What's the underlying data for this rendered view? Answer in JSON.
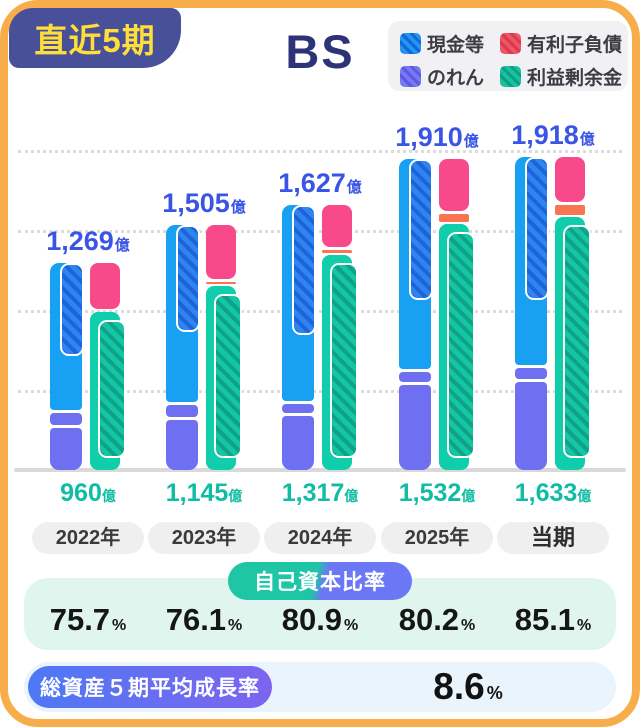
{
  "header": {
    "badge": "直近5期",
    "title": "BS"
  },
  "legend": {
    "items": [
      {
        "label": "現金等",
        "color": "#2196F3"
      },
      {
        "label": "有利子負債",
        "color": "#F05567"
      },
      {
        "label": "のれん",
        "color": "#7878F5"
      },
      {
        "label": "利益剰余金",
        "color": "#16C3A0"
      }
    ]
  },
  "units": {
    "oku": "億",
    "percent": "%"
  },
  "chart_data": {
    "type": "bar",
    "title": "BS",
    "period_label": "直近5期",
    "unit": "億円",
    "categories": [
      "2022年",
      "2023年",
      "2024年",
      "2025年",
      "当期"
    ],
    "ylim": [
      0,
      2000
    ],
    "gridlines": "dotted, unlabeled, every ~500億",
    "legend_entries": [
      "現金等",
      "有利子負債",
      "のれん",
      "利益剰余金"
    ],
    "groups": [
      {
        "year": "2022年",
        "total": 1269,
        "total_label": "1,269",
        "retained": 960,
        "retained_label": "960",
        "equity_ratio": "75.7",
        "cash_est": 570,
        "goodwill_est": 260,
        "goodwill_strip_est": 75,
        "debt_est": 282,
        "other_liabilities_est": 0
      },
      {
        "year": "2023年",
        "total": 1505,
        "total_label": "1,505",
        "retained": 1145,
        "retained_label": "1,145",
        "equity_ratio": "76.1",
        "cash_est": 655,
        "goodwill_est": 305,
        "goodwill_strip_est": 75,
        "debt_est": 331,
        "other_liabilities_est": 12
      },
      {
        "year": "2024年",
        "total": 1627,
        "total_label": "1,627",
        "retained": 1317,
        "retained_label": "1,317",
        "equity_ratio": "80.9",
        "cash_est": 800,
        "goodwill_est": 330,
        "goodwill_strip_est": 55,
        "debt_est": 258,
        "other_liabilities_est": 18
      },
      {
        "year": "2025年",
        "total": 1910,
        "total_label": "1,910",
        "retained": 1532,
        "retained_label": "1,532",
        "equity_ratio": "80.2",
        "cash_est": 865,
        "goodwill_est": 520,
        "goodwill_strip_est": 60,
        "debt_est": 319,
        "other_liabilities_est": 49
      },
      {
        "year": "当期",
        "total": 1918,
        "total_label": "1,918",
        "retained": 1633,
        "retained_label": "1,633",
        "equity_ratio": "85.1",
        "cash_est": 875,
        "goodwill_est": 540,
        "goodwill_strip_est": 65,
        "debt_est": 276,
        "other_liabilities_est": 61
      }
    ]
  },
  "footer": {
    "equity_ratio_label": "自己資本比率",
    "growth_label": "総資産５期平均成長率",
    "growth_value": "8.6"
  },
  "colors": {
    "frame_border": "#F7AE4A",
    "badge_bg": "#475098",
    "badge_text": "#FFDD3B",
    "title_navy": "#2E3377",
    "bar_blue": "#18A0F2",
    "bar_pink": "#F8498A",
    "bar_orange": "#F97450",
    "bar_purple": "#6F6FF2",
    "bar_teal": "#10CDAB",
    "label_blue": "#3A55E5",
    "label_teal": "#10BCA3",
    "mint_bg": "#E0F5EE",
    "lightblue_bg": "#E9F4FC",
    "ratio_pill_gradient": [
      "#1EC6A6",
      "#6B77F5"
    ],
    "growth_pill_gradient": [
      "#4E79F4",
      "#7D64EF"
    ]
  }
}
